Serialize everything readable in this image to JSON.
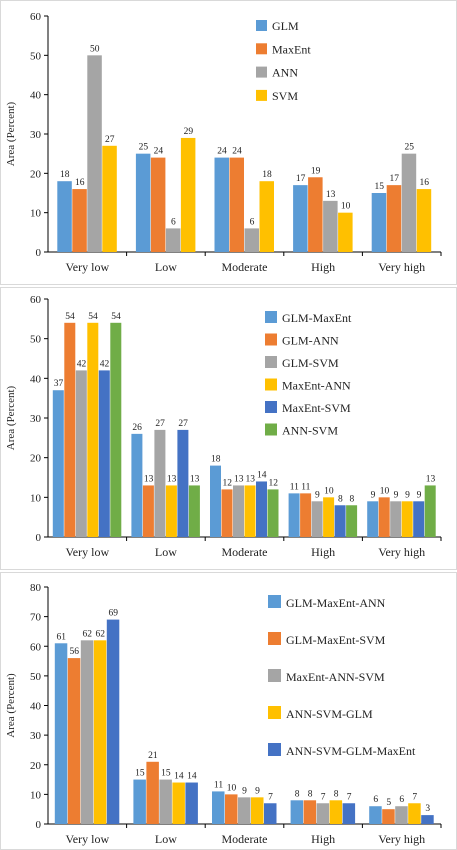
{
  "chart_data": [
    {
      "type": "bar",
      "categories": [
        "Very low",
        "Low",
        "Moderate",
        "High",
        "Very high"
      ],
      "ylabel": "Area (Percent)",
      "ylim": [
        0,
        60
      ],
      "yticks": [
        0,
        10,
        20,
        30,
        40,
        50,
        60
      ],
      "grid": false,
      "legend_position": "top-right",
      "series": [
        {
          "name": "GLM",
          "color": "#5b9bd5",
          "values": [
            18,
            25,
            24,
            17,
            15
          ]
        },
        {
          "name": "MaxEnt",
          "color": "#ed7d31",
          "values": [
            16,
            24,
            24,
            19,
            17
          ]
        },
        {
          "name": "ANN",
          "color": "#a5a5a5",
          "values": [
            50,
            6,
            6,
            13,
            25
          ]
        },
        {
          "name": "SVM",
          "color": "#ffc000",
          "values": [
            27,
            29,
            18,
            10,
            16
          ]
        }
      ]
    },
    {
      "type": "bar",
      "categories": [
        "Very low",
        "Low",
        "Moderate",
        "High",
        "Very high"
      ],
      "ylabel": "Area (Percent)",
      "ylim": [
        0,
        60
      ],
      "yticks": [
        0,
        10,
        20,
        30,
        40,
        50,
        60
      ],
      "grid": false,
      "legend_position": "top-right",
      "series": [
        {
          "name": "GLM-MaxEnt",
          "color": "#5b9bd5",
          "values": [
            37,
            26,
            18,
            11,
            9
          ]
        },
        {
          "name": "GLM-ANN",
          "color": "#ed7d31",
          "values": [
            54,
            13,
            12,
            11,
            10
          ]
        },
        {
          "name": "GLM-SVM",
          "color": "#a5a5a5",
          "values": [
            42,
            27,
            13,
            9,
            9
          ]
        },
        {
          "name": "MaxEnt-ANN",
          "color": "#ffc000",
          "values": [
            54,
            13,
            13,
            10,
            9
          ]
        },
        {
          "name": "MaxEnt-SVM",
          "color": "#4472c4",
          "values": [
            42,
            27,
            14,
            8,
            9
          ]
        },
        {
          "name": "ANN-SVM",
          "color": "#70ad47",
          "values": [
            54,
            13,
            12,
            8,
            13
          ]
        }
      ]
    },
    {
      "type": "bar",
      "categories": [
        "Very low",
        "Low",
        "Moderate",
        "High",
        "Very high"
      ],
      "ylabel": "Area (Percent)",
      "ylim": [
        0,
        80
      ],
      "yticks": [
        0,
        10,
        20,
        30,
        40,
        50,
        60,
        70,
        80
      ],
      "grid": false,
      "legend_position": "top-right",
      "series": [
        {
          "name": "GLM-MaxEnt-ANN",
          "color": "#5b9bd5",
          "values": [
            61,
            15,
            11,
            8,
            6
          ]
        },
        {
          "name": "GLM-MaxEnt-SVM",
          "color": "#ed7d31",
          "values": [
            56,
            21,
            10,
            8,
            5
          ]
        },
        {
          "name": "MaxEnt-ANN-SVM",
          "color": "#a5a5a5",
          "values": [
            62,
            15,
            9,
            7,
            6
          ]
        },
        {
          "name": "ANN-SVM-GLM",
          "color": "#ffc000",
          "values": [
            62,
            14,
            9,
            8,
            7
          ]
        },
        {
          "name": "ANN-SVM-GLM-MaxEnt",
          "color": "#4472c4",
          "values": [
            69,
            14,
            7,
            7,
            3
          ]
        }
      ]
    }
  ]
}
